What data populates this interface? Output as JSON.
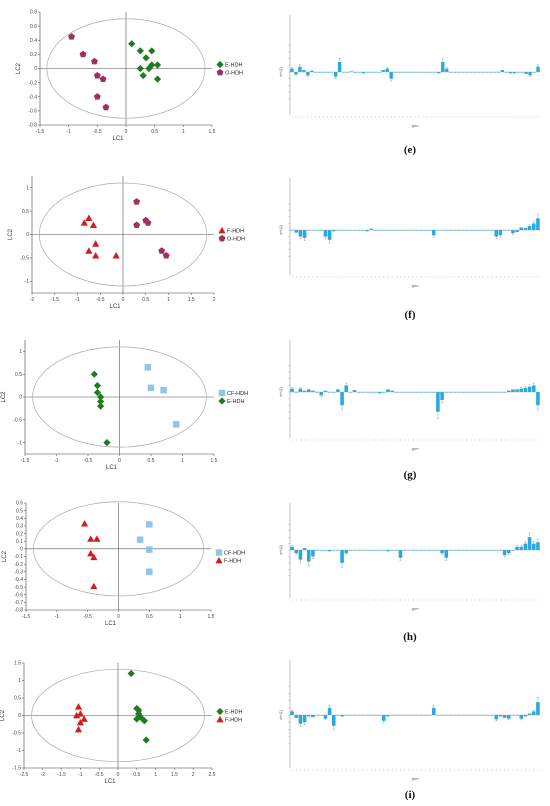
{
  "chart_data": [
    {
      "type": "scatter",
      "xlabel": "LC1",
      "ylabel": "LC2",
      "xticks": [
        "-1.5",
        "-1",
        "-0.5",
        "0",
        "0.5",
        "1",
        "1.5"
      ],
      "yticks": [
        "0.8",
        "0.6",
        "0.4",
        "0.2",
        "0",
        "-0.2",
        "-0.4",
        "-0.6",
        "-0.8"
      ],
      "xlim": [
        -1.5,
        1.5
      ],
      "ylim": [
        -0.8,
        0.8
      ],
      "legend_position": "right",
      "series": [
        {
          "name": "E-HDH",
          "marker": "diamond",
          "color": "#1e7b1e",
          "points": [
            [
              0.1,
              0.35
            ],
            [
              0.25,
              0.25
            ],
            [
              0.45,
              0.25
            ],
            [
              0.35,
              0.15
            ],
            [
              0.55,
              0.05
            ],
            [
              0.25,
              0.0
            ],
            [
              0.4,
              0.0
            ],
            [
              0.45,
              0.05
            ],
            [
              0.3,
              -0.1
            ],
            [
              0.55,
              -0.15
            ]
          ]
        },
        {
          "name": "O-HDH",
          "marker": "pentagon",
          "color": "#a03060",
          "points": [
            [
              -0.95,
              0.45
            ],
            [
              -0.75,
              0.2
            ],
            [
              -0.55,
              0.1
            ],
            [
              -0.5,
              -0.1
            ],
            [
              -0.4,
              -0.15
            ],
            [
              -0.5,
              -0.4
            ],
            [
              -0.35,
              -0.55
            ]
          ]
        }
      ]
    },
    {
      "type": "scatter",
      "xlabel": "LC1",
      "ylabel": "LC2",
      "xticks": [
        "-2",
        "-1.5",
        "-1",
        "-0.5",
        "0",
        "0.5",
        "1",
        "1.5",
        "2"
      ],
      "yticks": [
        "1",
        "0.5",
        "0",
        "-0.5",
        "-1"
      ],
      "xlim": [
        -2,
        2
      ],
      "ylim": [
        -1.25,
        1.25
      ],
      "legend_position": "right",
      "series": [
        {
          "name": "F-HDH",
          "marker": "triangle",
          "color": "#cc2020",
          "points": [
            [
              -0.75,
              0.35
            ],
            [
              -0.65,
              0.2
            ],
            [
              -0.85,
              0.25
            ],
            [
              -0.6,
              -0.2
            ],
            [
              -0.75,
              -0.35
            ],
            [
              -0.6,
              -0.45
            ],
            [
              -0.15,
              -0.45
            ]
          ]
        },
        {
          "name": "O-HDH",
          "marker": "pentagon",
          "color": "#a03060",
          "points": [
            [
              0.3,
              0.7
            ],
            [
              0.3,
              0.2
            ],
            [
              0.5,
              0.3
            ],
            [
              0.55,
              0.25
            ],
            [
              0.85,
              -0.35
            ],
            [
              0.95,
              -0.45
            ]
          ]
        }
      ]
    },
    {
      "type": "scatter",
      "xlabel": "LC1",
      "ylabel": "LC2",
      "xticks": [
        "-1.5",
        "-1",
        "-0.5",
        "0",
        "0.5",
        "1",
        "1.5"
      ],
      "yticks": [
        "1",
        "0.5",
        "0",
        "-0.5",
        "-1"
      ],
      "xlim": [
        -1.5,
        1.5
      ],
      "ylim": [
        -1.25,
        1.25
      ],
      "legend_position": "right",
      "series": [
        {
          "name": "CF-HDH",
          "marker": "square",
          "color": "#8fc6e8",
          "points": [
            [
              0.45,
              0.65
            ],
            [
              0.5,
              0.2
            ],
            [
              0.7,
              0.15
            ],
            [
              0.9,
              -0.6
            ]
          ]
        },
        {
          "name": "E-HDH",
          "marker": "diamond",
          "color": "#1e7b1e",
          "points": [
            [
              -0.4,
              0.5
            ],
            [
              -0.35,
              0.25
            ],
            [
              -0.35,
              0.1
            ],
            [
              -0.3,
              0.0
            ],
            [
              -0.3,
              -0.1
            ],
            [
              -0.3,
              -0.2
            ],
            [
              -0.2,
              -1.0
            ]
          ]
        }
      ]
    },
    {
      "type": "scatter",
      "xlabel": "LC1",
      "ylabel": "LC2",
      "xticks": [
        "-1.5",
        "-1",
        "-0.5",
        "0",
        "0.5",
        "1",
        "1.5"
      ],
      "yticks": [
        "0.6",
        "0.5",
        "0.4",
        "0.3",
        "0.2",
        "0.1",
        "0",
        "-0.1",
        "-0.2",
        "-0.3",
        "-0.4",
        "-0.5",
        "-0.6",
        "-0.7",
        "-0.8"
      ],
      "xlim": [
        -1.5,
        1.5
      ],
      "ylim": [
        -0.8,
        0.6
      ],
      "legend_position": "right",
      "series": [
        {
          "name": "CF-HDH",
          "marker": "square",
          "color": "#8fc6e8",
          "points": [
            [
              0.5,
              0.32
            ],
            [
              0.35,
              0.12
            ],
            [
              0.5,
              -0.01
            ],
            [
              0.5,
              -0.3
            ]
          ]
        },
        {
          "name": "F-HDH",
          "marker": "triangle",
          "color": "#cc2020",
          "points": [
            [
              -0.55,
              0.33
            ],
            [
              -0.45,
              0.13
            ],
            [
              -0.35,
              0.13
            ],
            [
              -0.45,
              -0.06
            ],
            [
              -0.4,
              -0.11
            ],
            [
              -0.4,
              -0.49
            ]
          ]
        }
      ]
    },
    {
      "type": "scatter",
      "xlabel": "LC1",
      "ylabel": "LC2",
      "xticks": [
        "-2.5",
        "-2",
        "-1.5",
        "-1",
        "-0.5",
        "0",
        "0.5",
        "1",
        "1.5",
        "2",
        "2.5"
      ],
      "yticks": [
        "1.5",
        "1",
        "0.5",
        "0",
        "-0.5",
        "-1",
        "-1.5"
      ],
      "xlim": [
        -2.5,
        2.5
      ],
      "ylim": [
        -1.5,
        1.5
      ],
      "legend_position": "right",
      "series": [
        {
          "name": "E-HDH",
          "marker": "diamond",
          "color": "#1e7b1e",
          "points": [
            [
              0.35,
              1.2
            ],
            [
              0.5,
              0.2
            ],
            [
              0.55,
              0.15
            ],
            [
              0.55,
              0.05
            ],
            [
              0.6,
              -0.05
            ],
            [
              0.5,
              -0.1
            ],
            [
              0.7,
              -0.15
            ],
            [
              0.75,
              -0.7
            ]
          ]
        },
        {
          "name": "F-HDH",
          "marker": "triangle",
          "color": "#cc2020",
          "points": [
            [
              -1.05,
              0.25
            ],
            [
              -1.0,
              0.05
            ],
            [
              -1.1,
              0.0
            ],
            [
              -0.9,
              -0.1
            ],
            [
              -1.0,
              -0.2
            ],
            [
              -1.05,
              -0.4
            ]
          ]
        }
      ]
    },
    {
      "type": "bar",
      "panel": "e",
      "xlabel": "ppm",
      "ylabel": "w*c[1]",
      "color": "#29a9e0",
      "values": [
        0.05,
        -0.04,
        0.08,
        0.03,
        -0.05,
        0.02,
        0,
        0,
        0,
        0,
        0,
        -0.07,
        0.15,
        0,
        0,
        0.01,
        -0.01,
        0,
        -0.02,
        0,
        0,
        0,
        0,
        0.03,
        0.05,
        -0.1,
        0,
        0,
        0,
        0,
        0,
        0,
        0,
        0,
        0,
        0,
        0,
        -0.02,
        0.15,
        0.05,
        0,
        0,
        0,
        0,
        0,
        0,
        0,
        0,
        0,
        0,
        0,
        0,
        0,
        0.03,
        0,
        -0.02,
        -0.02,
        0,
        0,
        -0.03,
        -0.05,
        0,
        0.08
      ]
    },
    {
      "type": "bar",
      "panel": "f",
      "xlabel": "ppm",
      "ylabel": "w*c[1]",
      "color": "#29a9e0",
      "values": [
        0,
        -0.04,
        -0.1,
        -0.12,
        0,
        0,
        0,
        0,
        -0.1,
        -0.15,
        -0.02,
        0,
        0,
        0,
        0,
        0,
        0,
        0,
        -0.02,
        0.02,
        0,
        0,
        0,
        0,
        0,
        0,
        0,
        0,
        0,
        0,
        0,
        0,
        0,
        0,
        -0.08,
        0,
        0,
        0,
        0,
        0,
        0,
        0,
        0,
        0,
        0,
        0,
        0,
        0,
        0,
        -0.1,
        -0.08,
        0,
        0,
        -0.05,
        -0.03,
        0.04,
        0.03,
        0.06,
        0.1,
        0.18
      ]
    },
    {
      "type": "bar",
      "panel": "g",
      "xlabel": "ppm",
      "ylabel": "w*c[1]",
      "color": "#29a9e0",
      "values": [
        0.05,
        0,
        0.05,
        0.02,
        0.04,
        0.02,
        0,
        -0.05,
        0.02,
        0,
        0,
        0.04,
        -0.2,
        0.1,
        0,
        0.03,
        0,
        0,
        0,
        0,
        0,
        -0.02,
        0,
        0.04,
        0.02,
        0,
        0,
        0,
        0,
        0,
        0,
        0,
        0,
        0,
        0,
        -0.3,
        -0.12,
        0,
        0,
        0,
        0,
        0,
        0,
        0,
        0,
        0,
        0,
        0,
        0,
        0,
        0,
        0,
        0.02,
        0.04,
        0.04,
        0.05,
        0.06,
        0.08,
        0.1,
        -0.2
      ]
    },
    {
      "type": "bar",
      "panel": "h",
      "xlabel": "ppm",
      "ylabel": "w*c[1]",
      "color": "#29a9e0",
      "values": [
        0.05,
        -0.05,
        -0.15,
        0.03,
        -0.18,
        -0.1,
        0,
        0,
        0,
        -0.02,
        0,
        0,
        -0.2,
        -0.05,
        0,
        0,
        0,
        0,
        0,
        0,
        0,
        0,
        0,
        -0.02,
        0,
        0,
        -0.12,
        0,
        0,
        0,
        0,
        0,
        0,
        0,
        0,
        0,
        -0.05,
        -0.12,
        0,
        0,
        0,
        0,
        0,
        0,
        0,
        0,
        0,
        0,
        0,
        0,
        0,
        -0.08,
        -0.05,
        0,
        0.05,
        0.05,
        0.1,
        0.2,
        0.1,
        0.12
      ]
    },
    {
      "type": "bar",
      "panel": "i",
      "xlabel": "ppm",
      "ylabel": "w*c[1]",
      "color": "#29a9e0",
      "values": [
        0.05,
        -0.04,
        -0.12,
        -0.1,
        -0.02,
        -0.03,
        0,
        0,
        -0.05,
        0.1,
        -0.15,
        0,
        -0.02,
        0,
        0,
        0,
        0,
        0,
        0,
        0,
        0,
        0,
        -0.08,
        -0.02,
        0,
        0,
        0,
        0,
        0,
        0,
        0,
        0,
        0,
        0,
        0.1,
        0,
        0,
        0,
        0,
        0,
        0,
        0,
        0,
        0,
        0,
        0,
        0,
        0,
        0,
        -0.06,
        -0.02,
        -0.04,
        -0.05,
        0,
        0,
        -0.05,
        -0.02,
        0.02,
        0.05,
        0.18
      ]
    }
  ],
  "panel_labels": [
    "(e)",
    "(f)",
    "(g)",
    "(h)",
    "(i)"
  ],
  "ppm_tick_text": "ppm"
}
